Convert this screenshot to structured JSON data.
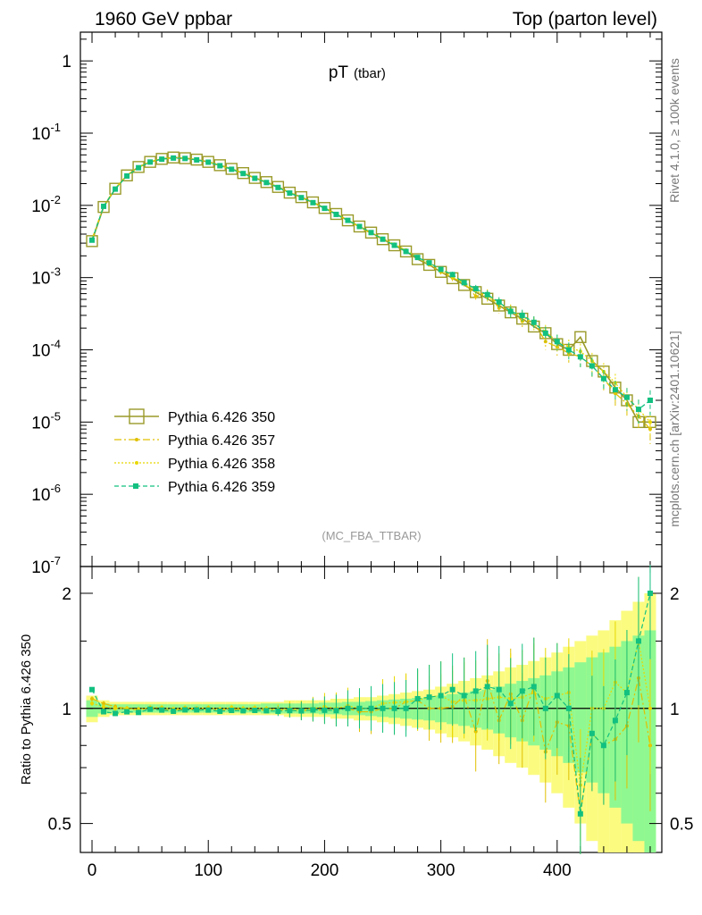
{
  "header": {
    "left": "1960 GeV ppbar",
    "right": "Top (parton level)"
  },
  "side_labels": {
    "rivet": "Rivet 4.1.0, ≥ 100k events",
    "mcplots": "mcplots.cern.ch [arXiv:2401.10621]"
  },
  "colors": {
    "p350": "#9a9a2a",
    "p357": "#e0c000",
    "p358": "#e8d800",
    "p359": "#12c080",
    "band_yellow": "#fbfb80",
    "band_green": "#90f890"
  },
  "chart_data": [
    {
      "type": "line",
      "title": "pT",
      "title_sub": "(tbar)",
      "analysis_tag": "(MC_FBA_TTBAR)",
      "yscale": "log",
      "xlim": [
        -10,
        490
      ],
      "ylim": [
        1e-07,
        2.5
      ],
      "ytick_labels": [
        "1",
        "10^-1",
        "10^-2",
        "10^-3",
        "10^-4",
        "10^-5",
        "10^-6",
        "10^-7"
      ],
      "legend": [
        "Pythia 6.426 350",
        "Pythia 6.426 357",
        "Pythia 6.426 358",
        "Pythia 6.426 359"
      ],
      "x": [
        0,
        10,
        20,
        30,
        40,
        50,
        60,
        70,
        80,
        90,
        100,
        110,
        120,
        130,
        140,
        150,
        160,
        170,
        180,
        190,
        200,
        210,
        220,
        230,
        240,
        250,
        260,
        270,
        280,
        290,
        300,
        310,
        320,
        330,
        340,
        350,
        360,
        370,
        380,
        390,
        400,
        410,
        420,
        430,
        440,
        450,
        460,
        470,
        480
      ],
      "series": [
        {
          "name": "Pythia 6.426 350",
          "values": [
            0.0032,
            0.0095,
            0.017,
            0.026,
            0.034,
            0.04,
            0.044,
            0.046,
            0.045,
            0.043,
            0.04,
            0.036,
            0.032,
            0.028,
            0.024,
            0.021,
            0.018,
            0.015,
            0.013,
            0.011,
            0.0092,
            0.0076,
            0.0062,
            0.0051,
            0.0042,
            0.0034,
            0.0028,
            0.0023,
            0.0018,
            0.0015,
            0.0012,
            0.00098,
            0.00079,
            0.00063,
            0.00051,
            0.00041,
            0.00033,
            0.00027,
            0.00021,
            0.00017,
            0.00012,
            0.0001,
            0.00015,
            7e-05,
            5e-05,
            3e-05,
            2e-05,
            1e-05,
            1e-05
          ]
        },
        {
          "name": "Pythia 6.426 357",
          "values": [
            0.0034,
            0.0098,
            0.0172,
            0.026,
            0.0335,
            0.04,
            0.0438,
            0.0455,
            0.0448,
            0.0428,
            0.0398,
            0.0355,
            0.0318,
            0.0278,
            0.0238,
            0.0208,
            0.0178,
            0.0149,
            0.0128,
            0.0109,
            0.0091,
            0.0075,
            0.0062,
            0.005,
            0.0041,
            0.0034,
            0.0028,
            0.0024,
            0.0019,
            0.0015,
            0.0012,
            0.00099,
            0.00085,
            0.00055,
            0.0006,
            0.00038,
            0.00036,
            0.00025,
            0.00024,
            0.00013,
            0.00011,
            9e-05,
            8e-05,
            6e-05,
            4e-05,
            2.5e-05,
            1.8e-05,
            1.2e-05,
            8e-06
          ]
        },
        {
          "name": "Pythia 6.426 358",
          "values": [
            0.0033,
            0.0096,
            0.0171,
            0.026,
            0.0338,
            0.0402,
            0.0442,
            0.0458,
            0.0452,
            0.043,
            0.0402,
            0.0358,
            0.0322,
            0.028,
            0.0241,
            0.021,
            0.0179,
            0.015,
            0.0129,
            0.011,
            0.0093,
            0.0076,
            0.0063,
            0.0051,
            0.0042,
            0.0035,
            0.0029,
            0.0024,
            0.0019,
            0.0016,
            0.0013,
            0.00102,
            0.00083,
            0.00066,
            0.00054,
            0.00044,
            0.00035,
            0.00029,
            0.00023,
            0.00018,
            0.00013,
            0.00011,
            9.5e-05,
            7e-05,
            5e-05,
            3.5e-05,
            2.2e-05,
            1.5e-05,
            1e-05
          ]
        },
        {
          "name": "Pythia 6.426 359",
          "values": [
            0.0033,
            0.0097,
            0.0168,
            0.0255,
            0.0332,
            0.0398,
            0.0436,
            0.0452,
            0.0446,
            0.0426,
            0.0396,
            0.0354,
            0.0316,
            0.0276,
            0.0237,
            0.0207,
            0.0177,
            0.0148,
            0.0128,
            0.0109,
            0.0091,
            0.0075,
            0.0062,
            0.0051,
            0.0042,
            0.0034,
            0.0028,
            0.0023,
            0.0019,
            0.0016,
            0.0013,
            0.0011,
            0.00085,
            0.0007,
            0.00058,
            0.00046,
            0.00034,
            0.0003,
            0.00024,
            0.00017,
            0.00013,
            0.0001,
            8e-05,
            6e-05,
            4e-05,
            2.8e-05,
            2.2e-05,
            1.5e-05,
            2e-05
          ]
        }
      ]
    },
    {
      "type": "line",
      "ylabel": "Ratio to Pythia 6.426 350",
      "yscale": "log",
      "xlim": [
        -10,
        490
      ],
      "ylim": [
        0.42,
        2.35
      ],
      "ytick_labels": [
        "0.5",
        "1",
        "2"
      ],
      "xtick_labels": [
        "0",
        "100",
        "200",
        "300",
        "400"
      ],
      "x": [
        0,
        10,
        20,
        30,
        40,
        50,
        60,
        70,
        80,
        90,
        100,
        110,
        120,
        130,
        140,
        150,
        160,
        170,
        180,
        190,
        200,
        210,
        220,
        230,
        240,
        250,
        260,
        270,
        280,
        290,
        300,
        310,
        320,
        330,
        340,
        350,
        360,
        370,
        380,
        390,
        400,
        410,
        420,
        430,
        440,
        450,
        460,
        470,
        480
      ],
      "band_yellow_halfwidth": [
        0.08,
        0.05,
        0.04,
        0.04,
        0.04,
        0.04,
        0.04,
        0.04,
        0.04,
        0.04,
        0.04,
        0.04,
        0.04,
        0.04,
        0.04,
        0.04,
        0.04,
        0.05,
        0.05,
        0.05,
        0.05,
        0.06,
        0.06,
        0.07,
        0.07,
        0.08,
        0.09,
        0.1,
        0.11,
        0.12,
        0.14,
        0.16,
        0.18,
        0.2,
        0.22,
        0.25,
        0.28,
        0.3,
        0.33,
        0.36,
        0.4,
        0.45,
        0.5,
        0.55,
        0.6,
        0.7,
        0.8,
        0.9,
        1.0
      ],
      "band_green_halfwidth": [
        0.05,
        0.03,
        0.025,
        0.025,
        0.025,
        0.025,
        0.025,
        0.025,
        0.025,
        0.025,
        0.025,
        0.025,
        0.025,
        0.025,
        0.025,
        0.03,
        0.03,
        0.03,
        0.03,
        0.03,
        0.035,
        0.035,
        0.04,
        0.04,
        0.045,
        0.05,
        0.055,
        0.06,
        0.065,
        0.07,
        0.08,
        0.09,
        0.1,
        0.11,
        0.12,
        0.14,
        0.16,
        0.18,
        0.2,
        0.22,
        0.25,
        0.28,
        0.32,
        0.36,
        0.4,
        0.45,
        0.5,
        0.55,
        0.6
      ],
      "series": [
        {
          "name": "Pythia 6.426 357",
          "values": [
            1.06,
            1.03,
            1.01,
            1.0,
            0.99,
            1.0,
            0.99,
            0.99,
            0.995,
            0.995,
            0.995,
            0.99,
            0.995,
            0.995,
            0.99,
            0.99,
            0.99,
            0.99,
            0.985,
            0.99,
            0.99,
            0.99,
            1.0,
            0.98,
            0.98,
            1.0,
            1.0,
            1.04,
            1.05,
            1.0,
            1.0,
            1.01,
            1.08,
            0.87,
            1.18,
            0.93,
            1.09,
            0.93,
            1.14,
            0.77,
            0.92,
            0.9,
            0.53,
            0.86,
            0.8,
            0.83,
            0.9,
            1.2,
            0.8
          ]
        },
        {
          "name": "Pythia 6.426 358",
          "values": [
            1.03,
            1.01,
            1.0,
            1.0,
            0.995,
            1.005,
            1.005,
            0.996,
            1.004,
            1.0,
            1.005,
            0.995,
            1.006,
            1.0,
            1.004,
            1.0,
            0.994,
            1.0,
            0.992,
            1.0,
            1.01,
            1.0,
            1.016,
            1.0,
            1.0,
            1.03,
            1.036,
            1.04,
            1.05,
            1.07,
            1.08,
            1.04,
            1.05,
            1.05,
            1.06,
            1.07,
            1.06,
            1.07,
            1.1,
            1.06,
            1.08,
            1.1,
            0.63,
            1.0,
            1.0,
            1.17,
            1.1,
            1.5,
            1.0
          ]
        },
        {
          "name": "Pythia 6.426 359",
          "values": [
            1.12,
            0.98,
            0.97,
            0.98,
            0.976,
            0.995,
            0.99,
            0.983,
            0.991,
            0.991,
            0.99,
            0.983,
            0.988,
            0.986,
            0.988,
            0.986,
            0.983,
            0.987,
            0.985,
            0.991,
            0.989,
            0.987,
            1.0,
            1.0,
            1.0,
            1.0,
            1.0,
            1.0,
            1.06,
            1.07,
            1.08,
            1.12,
            1.08,
            1.11,
            1.14,
            1.12,
            1.03,
            1.11,
            1.14,
            1.0,
            1.08,
            1.0,
            0.53,
            0.86,
            0.8,
            0.93,
            1.1,
            1.5,
            2.0
          ]
        }
      ]
    }
  ]
}
